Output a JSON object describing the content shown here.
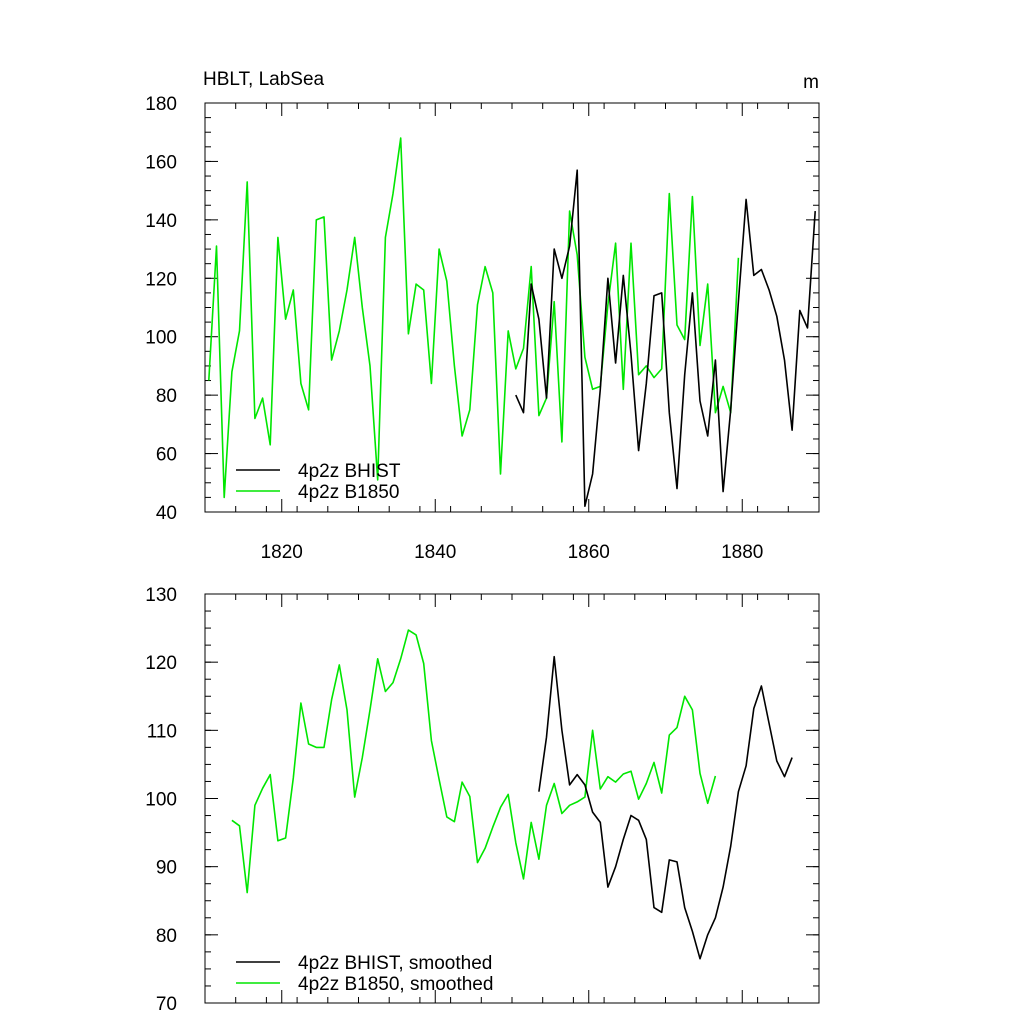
{
  "colors": {
    "bhist": "#000000",
    "b1850": "#00e600",
    "axis": "#000000",
    "background": "#ffffff"
  },
  "chart_data": [
    {
      "type": "line",
      "title": "HBLT, LabSea",
      "units": "m",
      "xlim": [
        1810,
        1890
      ],
      "ylim": [
        40,
        180
      ],
      "x_ticks": [
        1820,
        1840,
        1860,
        1880
      ],
      "x_tick_labels": [
        "1820",
        "1840",
        "1860",
        "1880"
      ],
      "y_ticks": [
        40,
        60,
        80,
        100,
        120,
        140,
        160,
        180
      ],
      "y_tick_labels": [
        "40",
        "60",
        "80",
        "100",
        "120",
        "140",
        "160",
        "180"
      ],
      "legend_position": "bottom-left",
      "grid": false,
      "series": [
        {
          "name": "4p2z BHIST",
          "color": "#000000",
          "x": [
            1850.5,
            1851.5,
            1852.5,
            1853.5,
            1854.5,
            1855.5,
            1856.5,
            1857.5,
            1858.5,
            1859.5,
            1860.5,
            1861.5,
            1862.5,
            1863.5,
            1864.5,
            1865.5,
            1866.5,
            1867.5,
            1868.5,
            1869.5,
            1870.5,
            1871.5,
            1872.5,
            1873.5,
            1874.5,
            1875.5,
            1876.5,
            1877.5,
            1878.5,
            1879.5,
            1880.5,
            1881.5,
            1882.5,
            1883.5,
            1884.5,
            1885.5,
            1886.5,
            1887.5,
            1888.5,
            1889.5
          ],
          "y": [
            80,
            74,
            118,
            106,
            79,
            130,
            120,
            131,
            157,
            42,
            53,
            82,
            120,
            91,
            121,
            94,
            61,
            84,
            114,
            115,
            74,
            48,
            87,
            115,
            78,
            66,
            92,
            47,
            75,
            112,
            147,
            121,
            123,
            116,
            107,
            92,
            68,
            109,
            103,
            143
          ]
        },
        {
          "name": "4p2z B1850",
          "color": "#00e600",
          "x": [
            1810.5,
            1811.5,
            1812.5,
            1813.5,
            1814.5,
            1815.5,
            1816.5,
            1817.5,
            1818.5,
            1819.5,
            1820.5,
            1821.5,
            1822.5,
            1823.5,
            1824.5,
            1825.5,
            1826.5,
            1827.5,
            1828.5,
            1829.5,
            1830.5,
            1831.5,
            1832.5,
            1833.5,
            1834.5,
            1835.5,
            1836.5,
            1837.5,
            1838.5,
            1839.5,
            1840.5,
            1841.5,
            1842.5,
            1843.5,
            1844.5,
            1845.5,
            1846.5,
            1847.5,
            1848.5,
            1849.5,
            1850.5,
            1851.5,
            1852.5,
            1853.5,
            1854.5,
            1855.5,
            1856.5,
            1857.5,
            1858.5,
            1859.5,
            1860.5,
            1861.5,
            1862.5,
            1863.5,
            1864.5,
            1865.5,
            1866.5,
            1867.5,
            1868.5,
            1869.5,
            1870.5,
            1871.5,
            1872.5,
            1873.5,
            1874.5,
            1875.5,
            1876.5,
            1877.5,
            1878.5,
            1879.5
          ],
          "y": [
            85,
            131,
            45,
            88,
            102,
            153,
            72,
            79,
            63,
            134,
            106,
            116,
            84,
            75,
            140,
            141,
            92,
            102,
            116,
            134,
            110,
            90,
            51,
            134,
            149,
            168,
            101,
            118,
            116,
            84,
            130,
            119,
            90,
            66,
            75,
            111,
            124,
            115,
            53,
            102,
            89,
            96,
            124,
            73,
            79,
            112,
            64,
            143,
            128,
            93,
            82,
            83,
            111,
            132,
            82,
            132,
            87,
            90,
            86,
            89,
            149,
            104,
            99,
            148,
            97,
            118,
            74,
            83,
            74,
            127
          ]
        }
      ]
    },
    {
      "type": "line",
      "title": "",
      "xlim": [
        1810,
        1890
      ],
      "ylim": [
        70,
        130
      ],
      "x_ticks": [
        1820,
        1840,
        1860,
        1880
      ],
      "y_ticks": [
        70,
        80,
        90,
        100,
        110,
        120,
        130
      ],
      "y_tick_labels": [
        "70",
        "80",
        "90",
        "100",
        "110",
        "120",
        "130"
      ],
      "legend_position": "bottom-left",
      "grid": false,
      "series": [
        {
          "name": "4p2z BHIST, smoothed",
          "color": "#000000",
          "x": [
            1853.5,
            1854.5,
            1855.5,
            1856.5,
            1857.5,
            1858.5,
            1859.5,
            1860.5,
            1861.5,
            1862.5,
            1863.5,
            1864.5,
            1865.5,
            1866.5,
            1867.5,
            1868.5,
            1869.5,
            1870.5,
            1871.5,
            1872.5,
            1873.5,
            1874.5,
            1875.5,
            1876.5,
            1877.5,
            1878.5,
            1879.5,
            1880.5,
            1881.5,
            1882.5,
            1883.5,
            1884.5,
            1885.5,
            1886.5
          ],
          "y": [
            101,
            109,
            120.8,
            110,
            102,
            103.5,
            102,
            98,
            96.5,
            87,
            90,
            94,
            97.5,
            96.8,
            94,
            84,
            83.3,
            91,
            90.7,
            84,
            80.5,
            76.5,
            80,
            82.5,
            87,
            93,
            101,
            104.8,
            113.2,
            116.5,
            111,
            105.5,
            103.2,
            106
          ]
        },
        {
          "name": "4p2z B1850, smoothed",
          "color": "#00e600",
          "x": [
            1813.5,
            1814.5,
            1815.5,
            1816.5,
            1817.5,
            1818.5,
            1819.5,
            1820.5,
            1821.5,
            1822.5,
            1823.5,
            1824.5,
            1825.5,
            1826.5,
            1827.5,
            1828.5,
            1829.5,
            1830.5,
            1831.5,
            1832.5,
            1833.5,
            1834.5,
            1835.5,
            1836.5,
            1837.5,
            1838.5,
            1839.5,
            1840.5,
            1841.5,
            1842.5,
            1843.5,
            1844.5,
            1845.5,
            1846.5,
            1847.5,
            1848.5,
            1849.5,
            1850.5,
            1851.5,
            1852.5,
            1853.5,
            1854.5,
            1855.5,
            1856.5,
            1857.5,
            1858.5,
            1859.5,
            1860.5,
            1861.5,
            1862.5,
            1863.5,
            1864.5,
            1865.5,
            1866.5,
            1867.5,
            1868.5,
            1869.5,
            1870.5,
            1871.5,
            1872.5,
            1873.5,
            1874.5,
            1875.5,
            1876.5
          ],
          "y": [
            96.8,
            96,
            86.2,
            99,
            101.5,
            103.5,
            93.8,
            94.2,
            103,
            114,
            108,
            107.5,
            107.5,
            114.5,
            119.6,
            113,
            100.2,
            106,
            113,
            120.5,
            115.7,
            117,
            120.5,
            124.7,
            124,
            119.8,
            108.5,
            102.8,
            97.3,
            96.6,
            102.4,
            100.3,
            90.6,
            92.7,
            95.8,
            98.7,
            100.6,
            93.5,
            88.2,
            96.5,
            91.1,
            99,
            102.2,
            97.8,
            99,
            99.5,
            100.2,
            110,
            101.4,
            103.2,
            102.4,
            103.6,
            104,
            99.9,
            102.2,
            105.3,
            100.8,
            109.3,
            110.4,
            115,
            113,
            103.7,
            99.3,
            103.3
          ]
        }
      ]
    }
  ]
}
